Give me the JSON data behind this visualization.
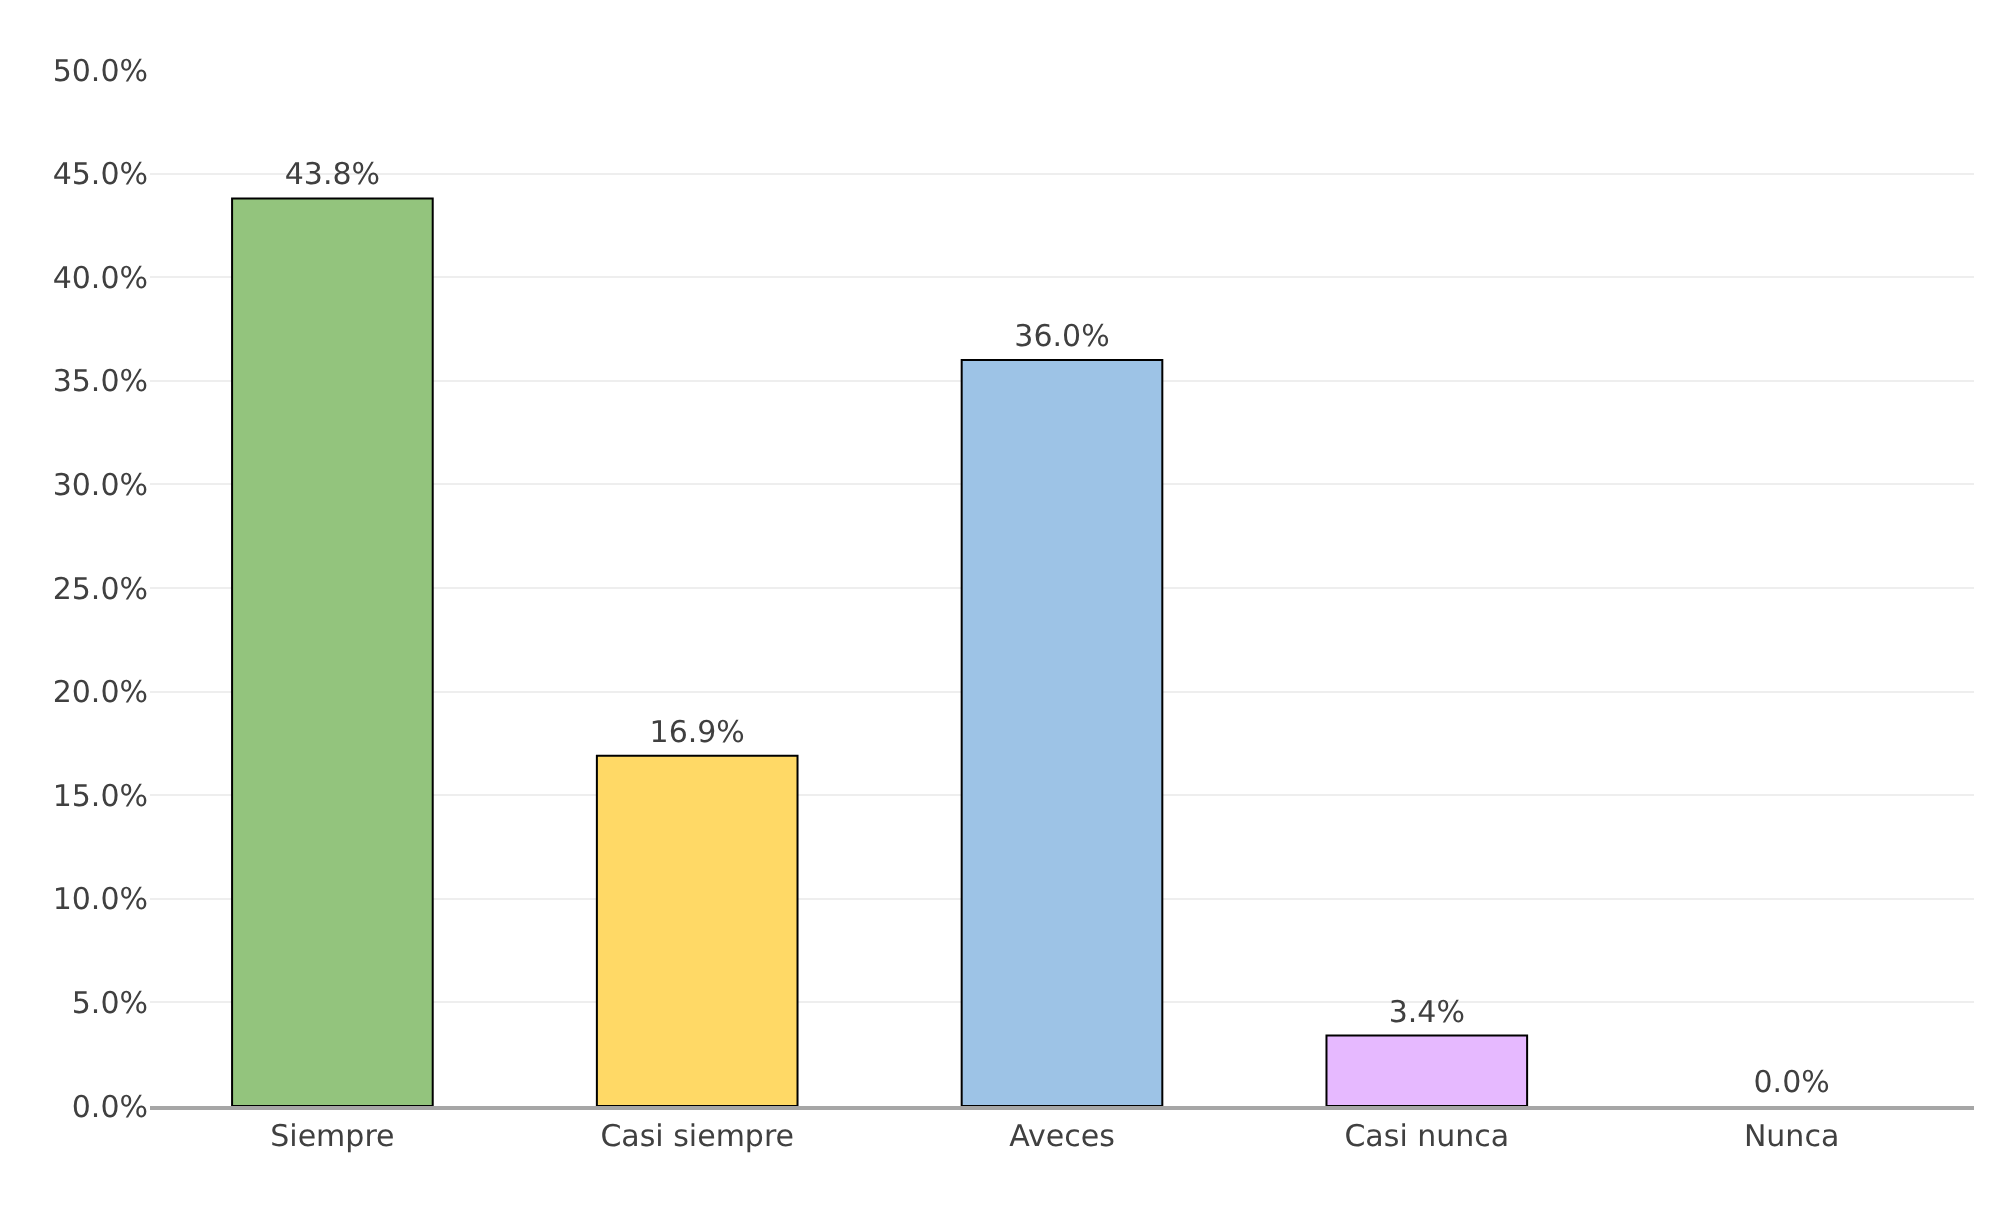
{
  "chart_data": {
    "type": "bar",
    "categories": [
      "Siempre",
      "Casi siempre",
      "Aveces",
      "Casi nunca",
      "Nunca"
    ],
    "values": [
      43.8,
      16.9,
      36.0,
      3.4,
      0.0
    ],
    "colors": [
      "#93c47d",
      "#ffd966",
      "#9dc3e6",
      "#e6b9ff",
      "#e6b9ff"
    ],
    "value_labels": [
      "43.8%",
      "16.9%",
      "36.0%",
      "3.4%",
      "0.0%"
    ],
    "ylim": [
      0,
      50
    ],
    "yticks": [
      {
        "value": 0,
        "label": "0.0%"
      },
      {
        "value": 5,
        "label": "5.0%"
      },
      {
        "value": 10,
        "label": "10.0%"
      },
      {
        "value": 15,
        "label": "15.0%"
      },
      {
        "value": 20,
        "label": "20.0%"
      },
      {
        "value": 25,
        "label": "25.0%"
      },
      {
        "value": 30,
        "label": "30.0%"
      },
      {
        "value": 35,
        "label": "35.0%"
      },
      {
        "value": 40,
        "label": "40.0%"
      },
      {
        "value": 45,
        "label": "45.0%"
      },
      {
        "value": 50,
        "label": "50.0%"
      }
    ],
    "grid": "y"
  }
}
